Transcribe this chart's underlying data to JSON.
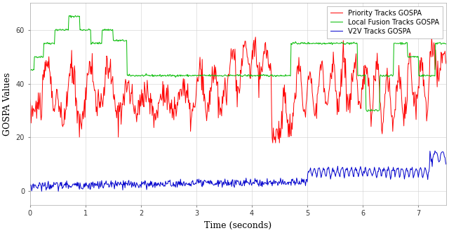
{
  "title": "",
  "xlabel": "Time (seconds)",
  "ylabel": "GOSPA Values",
  "xlim": [
    0,
    7.5
  ],
  "ylim": [
    -5,
    70
  ],
  "yticks": [
    0,
    20,
    40,
    60
  ],
  "xticks": [
    0,
    1,
    2,
    3,
    4,
    5,
    6,
    7
  ],
  "legend": [
    "Priority Tracks GOSPA",
    "Local Fusion Tracks GOSPA",
    "V2V Tracks GOSPA"
  ],
  "line_colors": [
    "#ff0000",
    "#00bb00",
    "#0000cc"
  ],
  "background_color": "#ffffff",
  "grid_color": "#d0d0d0",
  "seed": 42,
  "figsize": [
    6.4,
    3.33
  ],
  "dpi": 100
}
